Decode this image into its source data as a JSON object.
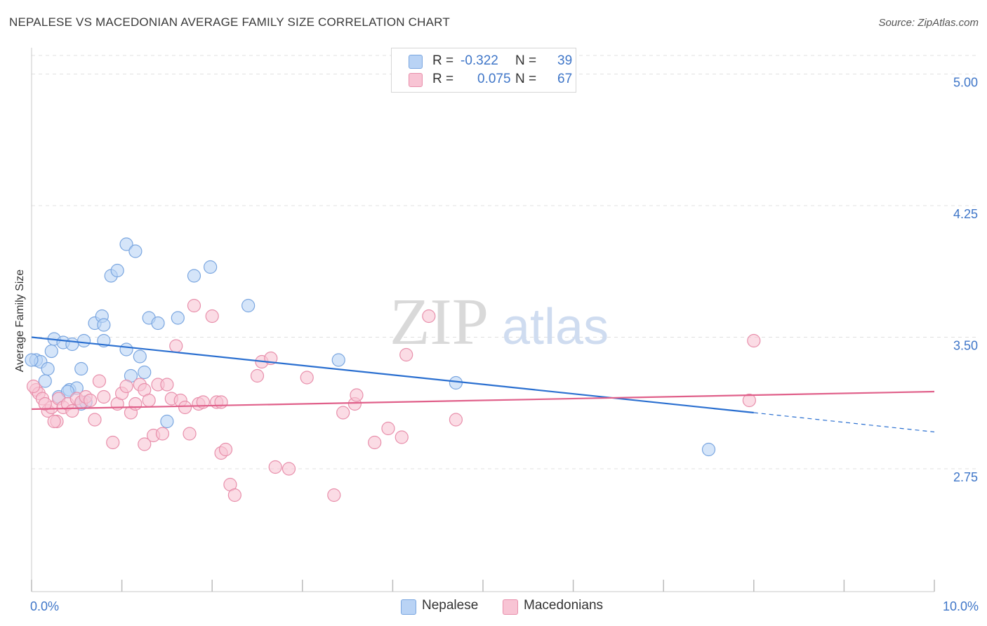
{
  "header": {
    "title": "NEPALESE VS MACEDONIAN AVERAGE FAMILY SIZE CORRELATION CHART",
    "source": "Source: ZipAtlas.com"
  },
  "watermark": {
    "zip": "ZIP",
    "atlas": "atlas"
  },
  "legend_top": {
    "rows": [
      {
        "r_label": "R =",
        "r_value": "-0.322",
        "n_label": "N =",
        "n_value": "39"
      },
      {
        "r_label": "R =",
        "r_value": "0.075",
        "n_label": "N =",
        "n_value": "67"
      }
    ]
  },
  "legend_bottom": {
    "items": [
      "Nepalese",
      "Macedonians"
    ]
  },
  "chart_data": {
    "type": "scatter",
    "ylabel": "Average Family Size",
    "xlabel": "",
    "xlim": [
      0,
      10
    ],
    "ylim": [
      2.05,
      5.15
    ],
    "x_tick_labels": {
      "left": "0.0%",
      "right": "10.0%"
    },
    "y_ticks": [
      {
        "value": 5.0,
        "label": "5.00"
      },
      {
        "value": 4.25,
        "label": "4.25"
      },
      {
        "value": 3.5,
        "label": "3.50"
      },
      {
        "value": 2.75,
        "label": "2.75"
      }
    ],
    "grid": true,
    "legend_position": "top-center",
    "colors": {
      "nepalese_fill": "#b9d3f5",
      "nepalese_stroke": "#7aa6e0",
      "nepalese_line": "#2a6fd0",
      "macedonian_fill": "#f8c4d4",
      "macedonian_stroke": "#e88fab",
      "macedonian_line": "#e0608a",
      "tick_text": "#3f76c8",
      "grid": "#e0e0e0"
    },
    "series": [
      {
        "name": "Nepalese",
        "trend": {
          "x0": 0,
          "y0": 3.5,
          "x1": 8.0,
          "y1": 3.07,
          "dashed_to_x": 10.0,
          "dashed_to_y": 2.96
        },
        "points": [
          [
            0.05,
            3.37
          ],
          [
            0.1,
            3.36
          ],
          [
            0.18,
            3.32
          ],
          [
            0.15,
            3.25
          ],
          [
            0.22,
            3.42
          ],
          [
            0.25,
            3.49
          ],
          [
            0.35,
            3.47
          ],
          [
            0.45,
            3.46
          ],
          [
            0.55,
            3.32
          ],
          [
            0.58,
            3.48
          ],
          [
            0.3,
            3.16
          ],
          [
            0.42,
            3.2
          ],
          [
            0.5,
            3.21
          ],
          [
            0.55,
            3.12
          ],
          [
            0.4,
            3.19
          ],
          [
            0.7,
            3.58
          ],
          [
            0.78,
            3.62
          ],
          [
            0.8,
            3.57
          ],
          [
            0.8,
            3.48
          ],
          [
            0.88,
            3.85
          ],
          [
            0.95,
            3.88
          ],
          [
            1.05,
            3.43
          ],
          [
            1.1,
            3.28
          ],
          [
            1.2,
            3.39
          ],
          [
            1.05,
            4.03
          ],
          [
            1.15,
            3.99
          ],
          [
            1.25,
            3.3
          ],
          [
            1.3,
            3.61
          ],
          [
            1.4,
            3.58
          ],
          [
            1.5,
            3.02
          ],
          [
            1.8,
            3.85
          ],
          [
            1.98,
            3.9
          ],
          [
            2.4,
            3.68
          ],
          [
            3.4,
            3.37
          ],
          [
            4.7,
            3.24
          ],
          [
            7.5,
            2.86
          ],
          [
            0.0,
            3.37
          ],
          [
            1.62,
            3.61
          ],
          [
            0.6,
            3.13
          ]
        ]
      },
      {
        "name": "Macedonians",
        "trend": {
          "x0": 0,
          "y0": 3.09,
          "x1": 10.0,
          "y1": 3.19
        },
        "points": [
          [
            0.05,
            3.2
          ],
          [
            0.08,
            3.18
          ],
          [
            0.12,
            3.15
          ],
          [
            0.18,
            3.08
          ],
          [
            0.22,
            3.1
          ],
          [
            0.28,
            3.02
          ],
          [
            0.3,
            3.15
          ],
          [
            0.35,
            3.1
          ],
          [
            0.4,
            3.12
          ],
          [
            0.45,
            3.08
          ],
          [
            0.5,
            3.15
          ],
          [
            0.55,
            3.13
          ],
          [
            0.6,
            3.16
          ],
          [
            0.65,
            3.14
          ],
          [
            0.7,
            3.03
          ],
          [
            0.75,
            3.25
          ],
          [
            0.8,
            3.16
          ],
          [
            0.9,
            2.9
          ],
          [
            0.95,
            3.12
          ],
          [
            1.0,
            3.18
          ],
          [
            1.05,
            3.22
          ],
          [
            1.1,
            3.07
          ],
          [
            1.15,
            3.12
          ],
          [
            1.2,
            3.23
          ],
          [
            1.25,
            3.2
          ],
          [
            1.3,
            3.14
          ],
          [
            1.35,
            2.94
          ],
          [
            1.4,
            3.23
          ],
          [
            1.45,
            2.95
          ],
          [
            1.5,
            3.23
          ],
          [
            1.55,
            3.15
          ],
          [
            1.6,
            3.45
          ],
          [
            1.65,
            3.14
          ],
          [
            1.7,
            3.1
          ],
          [
            1.75,
            2.95
          ],
          [
            1.8,
            3.68
          ],
          [
            1.85,
            3.12
          ],
          [
            1.9,
            3.13
          ],
          [
            2.0,
            3.62
          ],
          [
            2.05,
            3.13
          ],
          [
            2.1,
            2.84
          ],
          [
            2.15,
            2.86
          ],
          [
            2.2,
            2.66
          ],
          [
            2.25,
            2.6
          ],
          [
            2.5,
            3.28
          ],
          [
            2.55,
            3.36
          ],
          [
            2.65,
            3.38
          ],
          [
            2.7,
            2.76
          ],
          [
            2.85,
            2.75
          ],
          [
            3.05,
            3.27
          ],
          [
            3.35,
            2.6
          ],
          [
            3.45,
            3.07
          ],
          [
            3.58,
            3.12
          ],
          [
            3.6,
            3.17
          ],
          [
            3.8,
            2.9
          ],
          [
            3.95,
            2.98
          ],
          [
            4.1,
            2.93
          ],
          [
            4.15,
            3.4
          ],
          [
            4.4,
            3.62
          ],
          [
            4.7,
            3.03
          ],
          [
            8.0,
            3.48
          ],
          [
            7.95,
            3.14
          ],
          [
            0.15,
            3.12
          ],
          [
            0.25,
            3.02
          ],
          [
            1.25,
            2.89
          ],
          [
            2.1,
            3.13
          ],
          [
            0.02,
            3.22
          ]
        ]
      }
    ]
  }
}
